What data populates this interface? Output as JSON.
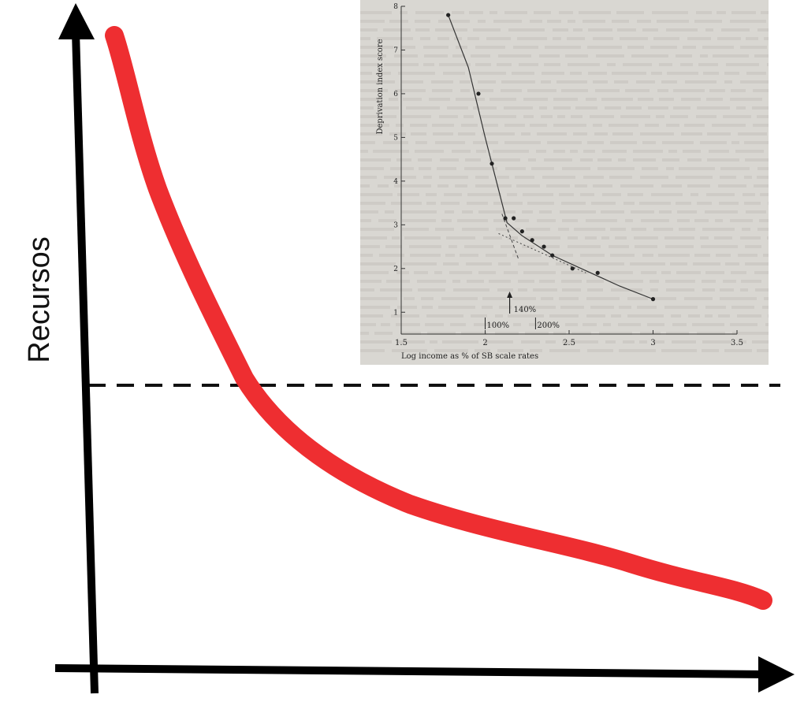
{
  "chart_data": [
    {
      "type": "line",
      "title": "",
      "ylabel": "Recursos",
      "xlabel": "",
      "threshold_line": {
        "style": "dashed",
        "color": "#111111"
      },
      "series": [
        {
          "color": "#ee2e31"
        }
      ]
    },
    {
      "type": "scatter",
      "title": "",
      "xlabel": "Log income as % of SB scale rates",
      "ylabel": "Deprivation index score",
      "xlim": [
        1.5,
        3.5
      ],
      "ylim": [
        0.5,
        8
      ],
      "x_ticks": [
        "1.5",
        "2",
        "2.5",
        "3",
        "3.5"
      ],
      "y_ticks": [
        "1",
        "2",
        "3",
        "4",
        "5",
        "6",
        "7",
        "8"
      ],
      "points": [
        [
          1.78,
          7.8
        ],
        [
          1.96,
          6.0
        ],
        [
          2.04,
          4.4
        ],
        [
          2.12,
          3.15
        ],
        [
          2.17,
          3.15
        ],
        [
          2.22,
          2.85
        ],
        [
          2.28,
          2.65
        ],
        [
          2.35,
          2.5
        ],
        [
          2.4,
          2.3
        ],
        [
          2.52,
          2.0
        ],
        [
          2.67,
          1.9
        ],
        [
          3.0,
          1.3
        ]
      ],
      "fit_line": [
        [
          1.78,
          7.8
        ],
        [
          1.9,
          6.6
        ],
        [
          2.0,
          5.0
        ],
        [
          2.08,
          3.8
        ],
        [
          2.13,
          3.05
        ],
        [
          2.22,
          2.75
        ],
        [
          2.4,
          2.3
        ],
        [
          2.6,
          1.95
        ],
        [
          2.8,
          1.6
        ],
        [
          3.0,
          1.3
        ]
      ],
      "dashed_extension": [
        [
          2.1,
          3.25
        ],
        [
          2.2,
          2.2
        ]
      ],
      "dotted_asymptote": [
        [
          2.08,
          2.8
        ],
        [
          2.6,
          1.9
        ]
      ],
      "annotations": {
        "arrow_label": "140%",
        "arrow_x": 2.146,
        "markers": [
          {
            "label": "100%",
            "x": 2.0
          },
          {
            "label": "200%",
            "x": 2.3
          }
        ]
      }
    }
  ]
}
